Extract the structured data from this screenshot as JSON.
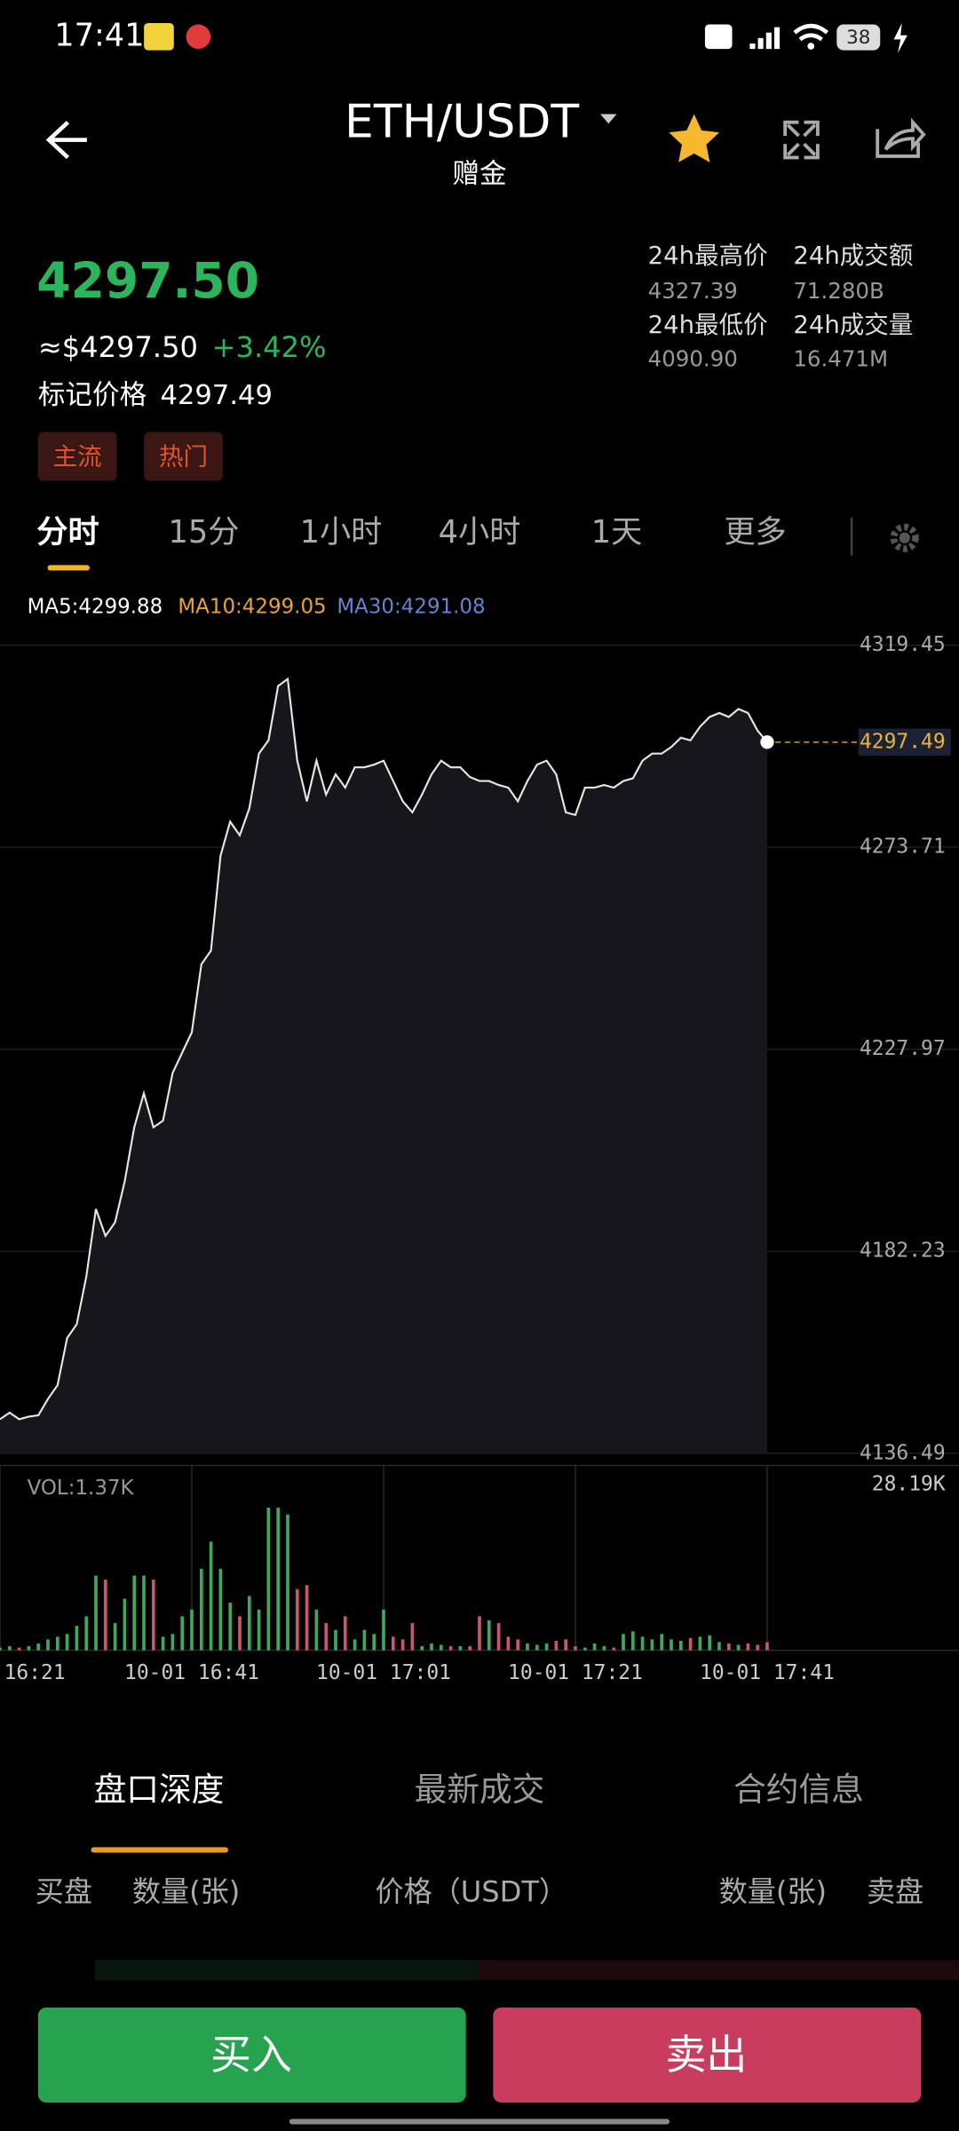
{
  "status_bar": {
    "time": "17:41",
    "battery": "38"
  },
  "header": {
    "pair": "ETH/USDT",
    "subtitle": "赠金"
  },
  "price": {
    "last": "4297.50",
    "usd": "≈$4297.50",
    "change": "+3.42%",
    "mark_label": "标记价格",
    "mark": "4297.49"
  },
  "tags": [
    "主流",
    "热门"
  ],
  "stats": [
    {
      "label": "24h最高价",
      "value": "4327.39"
    },
    {
      "label": "24h成交额",
      "value": "71.280B"
    },
    {
      "label": "24h最低价",
      "value": "4090.90"
    },
    {
      "label": "24h成交量",
      "value": "16.471M"
    }
  ],
  "timeframes": [
    "分时",
    "15分",
    "1小时",
    "4小时",
    "1天",
    "更多"
  ],
  "ma": [
    "MA5:4299.88",
    "MA10:4299.05",
    "MA30:4291.08"
  ],
  "chart_data": {
    "type": "line",
    "color": "#e6e6e6",
    "area_color": "#16161b",
    "grid": true,
    "values": [
      4144.2,
      4145.7,
      4144.2,
      4144.8,
      4145.1,
      4148.8,
      4151.9,
      4162.6,
      4165.7,
      4176.5,
      4191.8,
      4185.7,
      4188.8,
      4198.0,
      4210.3,
      4218.0,
      4210.3,
      4211.8,
      4222.6,
      4227.2,
      4231.8,
      4247.2,
      4250.3,
      4271.8,
      4279.5,
      4276.4,
      4282.5,
      4294.9,
      4297.9,
      4310.2,
      4311.8,
      4293.3,
      4284.1,
      4293.3,
      4285.6,
      4290.2,
      4287.2,
      4291.8,
      4291.8,
      4292.4,
      4293.3,
      4288.7,
      4284.1,
      4281.6,
      4285.6,
      4290.2,
      4293.3,
      4291.8,
      4291.8,
      4289.6,
      4288.7,
      4288.7,
      4287.8,
      4287.2,
      4284.1,
      4288.7,
      4292.4,
      4293.3,
      4290.2,
      4281.6,
      4281.0,
      4287.2,
      4287.2,
      4287.8,
      4287.2,
      4288.7,
      4289.3,
      4293.3,
      4294.9,
      4294.9,
      4296.4,
      4298.5,
      4297.9,
      4301.0,
      4303.2,
      4304.1,
      4303.2,
      4305.0,
      4304.1,
      4300.1,
      4297.5
    ],
    "xlim": [
      0,
      100
    ],
    "xticks": [
      {
        "value": 0,
        "label": "16:21"
      },
      {
        "value": 20,
        "label": "10-01 16:41"
      },
      {
        "value": 40,
        "label": "10-01 17:01"
      },
      {
        "value": 60,
        "label": "10-01 17:21"
      },
      {
        "value": 80,
        "label": "10-01 17:41"
      }
    ],
    "ylim": [
      4136.49,
      4319.45
    ],
    "yticks": [
      4319.45,
      4273.71,
      4227.97,
      4182.23,
      4136.49
    ],
    "last_price": 4297.49,
    "volume": {
      "label": "VOL:1.37K",
      "up_color": "#3fa85a",
      "down_color": "#c9566f",
      "values": [
        460,
        690,
        460,
        690,
        1160,
        1850,
        2310,
        2770,
        4160,
        5780,
        12710,
        12010,
        4620,
        8780,
        12710,
        12710,
        12010,
        2310,
        2770,
        5780,
        6930,
        13860,
        18480,
        13860,
        8090,
        5780,
        9240,
        6930,
        24260,
        24260,
        23100,
        10400,
        11090,
        6930,
        4620,
        3470,
        5780,
        1850,
        3470,
        2770,
        6930,
        2310,
        1850,
        4620,
        690,
        1160,
        920,
        690,
        690,
        690,
        5780,
        5080,
        4620,
        2310,
        1850,
        1160,
        920,
        1160,
        1620,
        1850,
        690,
        460,
        1160,
        690,
        460,
        2770,
        3230,
        2310,
        1850,
        2770,
        1850,
        1620,
        2080,
        2310,
        2540,
        1390,
        1160,
        920,
        1160,
        920,
        1370
      ],
      "ylim": [
        0,
        28190
      ],
      "yticks": [
        {
          "value": 28190,
          "label": "28.19K"
        }
      ]
    }
  },
  "book_tabs": [
    "盘口深度",
    "最新成交",
    "合约信息"
  ],
  "book_header": [
    "买盘",
    "数量(张)",
    "价格（USDT）",
    "数量(张)",
    "卖盘"
  ],
  "buttons": {
    "buy": "买入",
    "sell": "卖出"
  }
}
